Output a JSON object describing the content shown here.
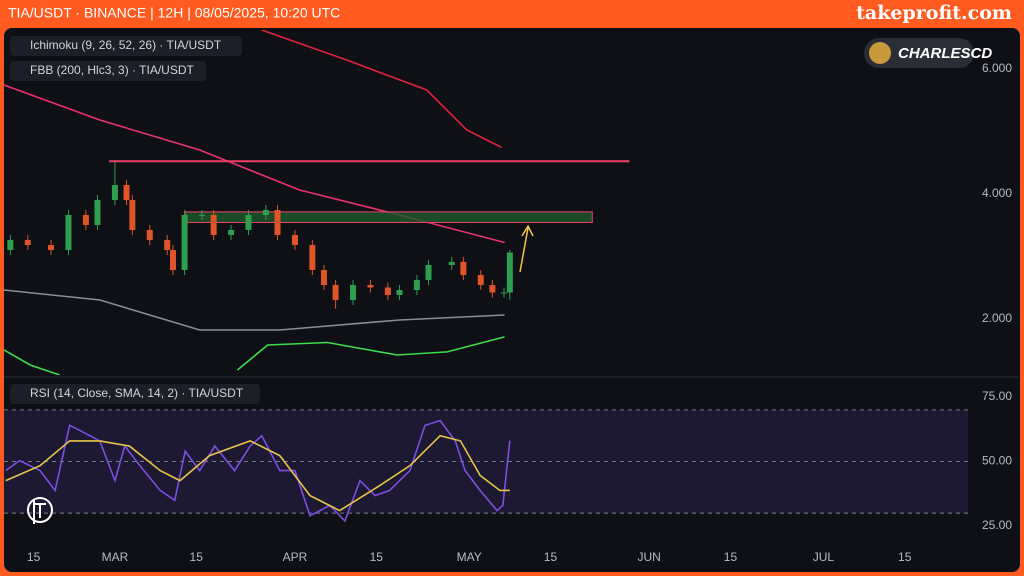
{
  "header": {
    "title": "TIA/USDT · BINANCE | 12H | 08/05/2025, 10:20 UTC",
    "brand": "takeprofit.com"
  },
  "logo": "CHARLESCD",
  "chart_data": [
    {
      "type": "candlestick",
      "indicators": [
        "Ichimoku (9, 26, 52, 26) · TIA/USDT",
        "FBB (200, Hlc3, 3) · TIA/USDT"
      ],
      "x": [
        42,
        45,
        49,
        52,
        55,
        57,
        60,
        62,
        63,
        66,
        69,
        70,
        72,
        75,
        77,
        80,
        83,
        86,
        88,
        91,
        94,
        96,
        98,
        101,
        104,
        107,
        109,
        112,
        114,
        118,
        120,
        123,
        125,
        127,
        128
      ],
      "open": [
        3.1,
        3.26,
        3.18,
        3.1,
        3.66,
        3.5,
        3.9,
        4.14,
        3.9,
        3.42,
        3.26,
        3.1,
        2.78,
        3.66,
        3.66,
        3.34,
        3.42,
        3.66,
        3.74,
        3.34,
        3.18,
        2.78,
        2.54,
        2.3,
        2.54,
        2.5,
        2.38,
        2.46,
        2.62,
        2.86,
        2.91,
        2.7,
        2.54,
        2.42,
        2.42
      ],
      "high": [
        3.34,
        3.34,
        3.26,
        3.74,
        3.74,
        3.98,
        4.51,
        4.22,
        3.98,
        3.5,
        3.34,
        3.18,
        3.74,
        3.74,
        3.74,
        3.5,
        3.74,
        3.82,
        3.82,
        3.42,
        3.26,
        2.86,
        2.62,
        2.62,
        2.62,
        2.58,
        2.54,
        2.7,
        2.94,
        2.99,
        2.99,
        2.78,
        2.62,
        2.5,
        3.1
      ],
      "low": [
        3.02,
        3.1,
        3.02,
        3.02,
        3.42,
        3.42,
        3.82,
        3.82,
        3.34,
        3.18,
        3.02,
        2.7,
        2.7,
        3.58,
        3.26,
        3.26,
        3.34,
        3.58,
        3.26,
        3.1,
        2.7,
        2.46,
        2.16,
        2.22,
        2.42,
        2.3,
        2.3,
        2.38,
        2.54,
        2.78,
        2.62,
        2.46,
        2.34,
        2.34,
        2.3
      ],
      "close": [
        3.26,
        3.18,
        3.1,
        3.66,
        3.5,
        3.9,
        4.14,
        3.9,
        3.42,
        3.26,
        3.1,
        2.78,
        3.66,
        3.66,
        3.34,
        3.42,
        3.66,
        3.74,
        3.34,
        3.18,
        2.78,
        2.54,
        2.3,
        2.54,
        2.5,
        2.38,
        2.46,
        2.62,
        2.86,
        2.91,
        2.7,
        2.54,
        2.42,
        2.42,
        3.06
      ],
      "up_color": "#2e9e4f",
      "down_color": "#e0542a",
      "lines": [
        {
          "color": "#e8336d",
          "x": [
            40.9,
            57.4,
            74.6,
            91.8,
            109,
            127.1
          ],
          "values": [
            5.74,
            5.18,
            4.7,
            4.06,
            3.66,
            3.22
          ]
        },
        {
          "color": "#e0233c",
          "x": [
            85.3,
            99.9,
            113.7,
            120.6,
            126.6
          ],
          "values": [
            6.62,
            6.14,
            5.66,
            5.02,
            4.74
          ]
        },
        {
          "color": "#8a8d96",
          "x": [
            40.9,
            57.4,
            74.6,
            88.4,
            109,
            127.1
          ],
          "values": [
            2.46,
            2.3,
            1.82,
            1.82,
            1.98,
            2.06
          ]
        },
        {
          "color": "#3fdc4a",
          "x": [
            40.9,
            45.4,
            50.5
          ],
          "values": [
            1.5,
            1.26,
            1.1
          ]
        },
        {
          "color": "#3fdc4a",
          "x": [
            81.1,
            86.3,
            96.6,
            108.6,
            117.2,
            127.1
          ],
          "values": [
            1.18,
            1.58,
            1.62,
            1.42,
            1.47,
            1.71
          ]
        }
      ],
      "hline": {
        "value": 4.52,
        "x": [
          59,
          148.6
        ],
        "color": "#f0406a"
      },
      "zone": {
        "y": [
          3.54,
          3.71
        ],
        "x": [
          72.1,
          142.2
        ],
        "color": "#1f5a2a"
      },
      "xlim": [
        40.9,
        206.9
      ],
      "ylim": [
        1.1,
        6.62
      ],
      "yticks": [
        {
          "value": 2,
          "label": "2.000"
        },
        {
          "value": 4,
          "label": "4.000"
        },
        {
          "value": 6,
          "label": "6.000"
        }
      ]
    },
    {
      "type": "line",
      "label": "RSI (14, Close, SMA, 14, 2) · TIA/USDT",
      "series": [
        {
          "color": "#7b4fe0",
          "x": [
            41.2,
            43.6,
            47.1,
            49.7,
            52.2,
            54.0,
            57.4,
            60,
            61.7,
            64.3,
            67.8,
            70.3,
            72.1,
            74.6,
            77.2,
            80.6,
            83.3,
            85.3,
            88.4,
            91.0,
            93.6,
            97.0,
            99.6,
            102.2,
            104.8,
            107.3,
            110.8,
            113.4,
            116.0,
            118.6,
            120.3,
            122.9,
            125.8,
            126.8,
            128.0
          ],
          "values": [
            46.5,
            50.4,
            46.5,
            38.8,
            64,
            62,
            58,
            42.6,
            56,
            48.4,
            38.8,
            35,
            54,
            46.5,
            56,
            46.5,
            56,
            60,
            46.5,
            46.5,
            29,
            33,
            27,
            42.6,
            36.8,
            38.8,
            46.5,
            64,
            65.9,
            58,
            46.5,
            38.8,
            31,
            33,
            58.1
          ]
        },
        {
          "color": "#e8c547",
          "x": [
            41.2,
            47.1,
            52.2,
            57.4,
            62.5,
            67.8,
            71.2,
            76.3,
            83.3,
            88.4,
            93.6,
            98.7,
            105.6,
            110.8,
            116.0,
            119.5,
            122.9,
            126.3,
            128.0
          ],
          "values": [
            42.6,
            48.4,
            58,
            58,
            56,
            46.5,
            42.6,
            52.3,
            58,
            52.3,
            36.8,
            31,
            40.7,
            48.4,
            60,
            58,
            44.6,
            38.8,
            38.8
          ]
        }
      ],
      "band": [
        30,
        70
      ],
      "levels": [
        30,
        50,
        70
      ],
      "xlim": [
        40.9,
        206.9
      ],
      "ylim": [
        19.6,
        81.6
      ],
      "yticks": [
        {
          "value": 25,
          "label": "25.00"
        },
        {
          "value": 50,
          "label": "50.00"
        },
        {
          "value": 75,
          "label": "75.00"
        }
      ],
      "xticks": [
        {
          "value": 46,
          "label": "15"
        },
        {
          "value": 60,
          "label": "MAR"
        },
        {
          "value": 74,
          "label": "15"
        },
        {
          "value": 91,
          "label": "APR"
        },
        {
          "value": 105,
          "label": "15"
        },
        {
          "value": 121,
          "label": "MAY"
        },
        {
          "value": 135,
          "label": "15"
        },
        {
          "value": 152,
          "label": "JUN"
        },
        {
          "value": 166,
          "label": "15"
        },
        {
          "value": 182,
          "label": "JUL"
        },
        {
          "value": 196,
          "label": "15"
        }
      ]
    }
  ]
}
